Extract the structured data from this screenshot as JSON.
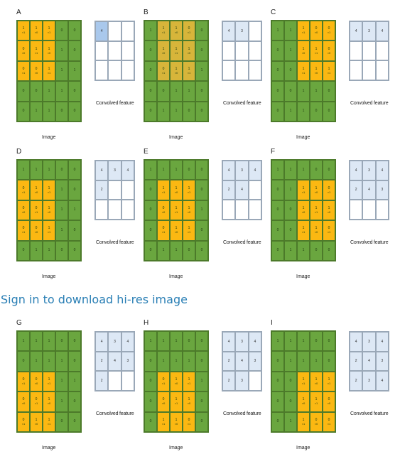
{
  "link": {
    "signin": "Sign in to download hi-res image"
  },
  "image_caption": "Image",
  "feature_caption": "Convolved feature",
  "image": [
    [
      "1",
      "1",
      "1",
      "0",
      "0"
    ],
    [
      "0",
      "1",
      "1",
      "1",
      "0"
    ],
    [
      "0",
      "0",
      "1",
      "1",
      "1"
    ],
    [
      "0",
      "0",
      "1",
      "1",
      "0"
    ],
    [
      "0",
      "1",
      "1",
      "0",
      "0"
    ]
  ],
  "kernel": [
    [
      "×1",
      "×0",
      "×1"
    ],
    [
      "×0",
      "×1",
      "×0"
    ],
    [
      "×1",
      "×0",
      "×1"
    ]
  ],
  "output": [
    [
      "4",
      "3",
      "4"
    ],
    [
      "2",
      "4",
      "3"
    ],
    [
      "2",
      "3",
      "4"
    ]
  ],
  "panels": [
    {
      "label": "A",
      "kr": 0,
      "kc": 0,
      "dark": false,
      "filled": 1
    },
    {
      "label": "B",
      "kr": 0,
      "kc": 1,
      "dark": true,
      "filled": 2
    },
    {
      "label": "C",
      "kr": 0,
      "kc": 2,
      "dark": false,
      "filled": 3
    },
    {
      "label": "D",
      "kr": 1,
      "kc": 0,
      "dark": false,
      "filled": 4
    },
    {
      "label": "E",
      "kr": 1,
      "kc": 1,
      "dark": false,
      "filled": 5
    },
    {
      "label": "F",
      "kr": 1,
      "kc": 2,
      "dark": false,
      "filled": 6
    },
    {
      "label": "G",
      "kr": 2,
      "kc": 0,
      "dark": false,
      "filled": 7
    },
    {
      "label": "H",
      "kr": 2,
      "kc": 1,
      "dark": false,
      "filled": 8
    },
    {
      "label": "I",
      "kr": 2,
      "kc": 2,
      "dark": false,
      "filled": 9
    }
  ]
}
